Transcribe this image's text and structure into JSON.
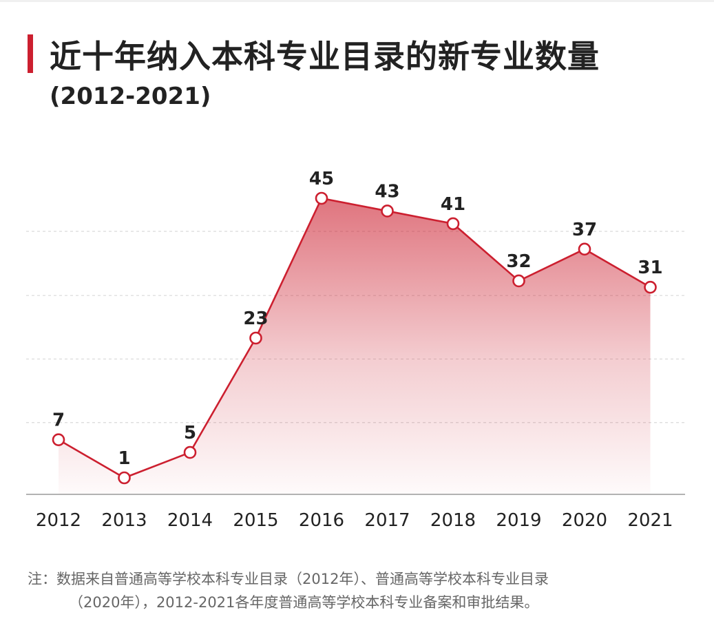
{
  "colors": {
    "accent": "#cc1f2f",
    "grid": "#d9d9d9",
    "axis": "#999999",
    "text": "#222222",
    "note": "#666666"
  },
  "header": {
    "title": "近十年纳入本科专业目录的新专业数量",
    "subtitle": "(2012-2021)"
  },
  "chart_data": {
    "type": "area",
    "title": "近十年纳入本科专业目录的新专业数量",
    "subtitle": "(2012-2021)",
    "xlabel": "",
    "ylabel": "",
    "categories": [
      "2012",
      "2013",
      "2014",
      "2015",
      "2016",
      "2017",
      "2018",
      "2019",
      "2020",
      "2021"
    ],
    "series": [
      {
        "values": [
          7,
          1,
          5,
          23,
          45,
          43,
          41,
          32,
          37,
          31
        ]
      }
    ],
    "data_labels": [
      "7",
      "1",
      "5",
      "23",
      "45",
      "43",
      "41",
      "32",
      "37",
      "31"
    ],
    "ylim": [
      -0.3,
      45
    ],
    "grid": "horizontal dashed",
    "gridlines_y": [
      9.7,
      19.7,
      29.7,
      39.8
    ],
    "legend": "none"
  },
  "footnote": {
    "line1": "注：数据来自普通高等学校本科专业目录（2012年）、普通高等学校本科专业目录",
    "line2": "（2020年），2012-2021各年度普通高等学校本科专业备案和审批结果。"
  }
}
